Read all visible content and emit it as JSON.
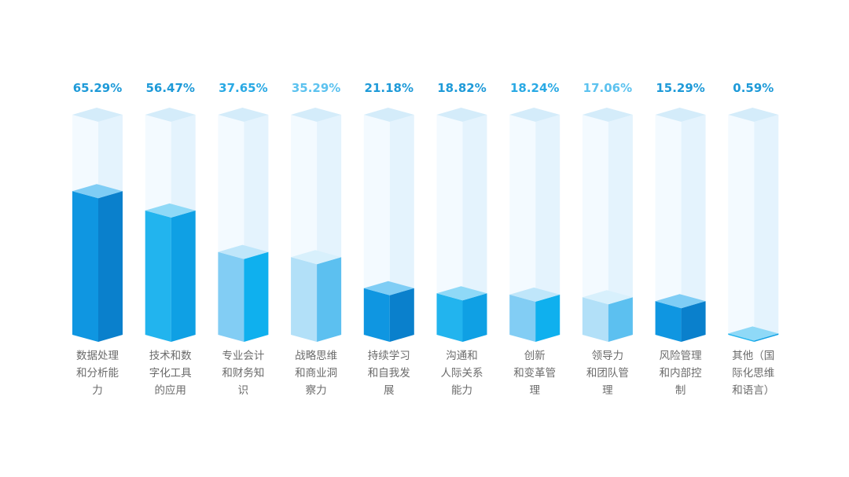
{
  "chart_data": {
    "type": "bar",
    "categories": [
      [
        "数据处理",
        "和分析能",
        "力"
      ],
      [
        "技术和数",
        "字化工具",
        "的应用"
      ],
      [
        "专业会计",
        "和财务知",
        "识"
      ],
      [
        "战略思维",
        "和商业洞",
        "察力"
      ],
      [
        "持续学习",
        "和自我发",
        "展"
      ],
      [
        "沟通和",
        "人际关系",
        "能力"
      ],
      [
        "创新",
        "和变革管",
        "理"
      ],
      [
        "领导力",
        "和团队管",
        "理"
      ],
      [
        "风险管理",
        "和内部控",
        "制"
      ],
      [
        "其他（国",
        "际化思维",
        "和语言）"
      ]
    ],
    "values": [
      65.29,
      56.47,
      37.65,
      35.29,
      21.18,
      18.82,
      18.24,
      17.06,
      15.29,
      0.59
    ],
    "value_labels": [
      "65.29%",
      "56.47%",
      "37.65%",
      "35.29%",
      "21.18%",
      "18.82%",
      "18.24%",
      "17.06%",
      "15.29%",
      "0.59%"
    ],
    "ylim": [
      0,
      100
    ],
    "palette": [
      {
        "front": "#0f96e1",
        "side": "#0a80cc",
        "top": "#7fcdf5",
        "text": "#1e9ad8"
      },
      {
        "front": "#22b4ee",
        "side": "#0fa0e4",
        "top": "#8fd9f7",
        "text": "#1e9ad8"
      },
      {
        "front": "#82cdf4",
        "side": "#0fb0ee",
        "top": "#bfe6fa",
        "text": "#29a9e4"
      },
      {
        "front": "#b2e0f8",
        "side": "#5cc0f0",
        "top": "#d8f0fc",
        "text": "#5cc2ef"
      },
      {
        "front": "#0f96e1",
        "side": "#0a80cc",
        "top": "#7fcdf5",
        "text": "#1e9ad8"
      },
      {
        "front": "#22b4ee",
        "side": "#0fa0e4",
        "top": "#8fd9f7",
        "text": "#1e9ad8"
      },
      {
        "front": "#82cdf4",
        "side": "#0fb0ee",
        "top": "#bfe6fa",
        "text": "#29a9e4"
      },
      {
        "front": "#b2e0f8",
        "side": "#5cc0f0",
        "top": "#d8f0fc",
        "text": "#5cc2ef"
      },
      {
        "front": "#0f96e1",
        "side": "#0a80cc",
        "top": "#7fcdf5",
        "text": "#1e9ad8"
      },
      {
        "front": "#22b4ee",
        "side": "#0fa0e4",
        "top": "#8fd9f7",
        "text": "#1e9ad8"
      }
    ],
    "ghost": {
      "front": "#f3faff",
      "side": "#e4f3fd",
      "top": "#d4ecfa"
    }
  }
}
